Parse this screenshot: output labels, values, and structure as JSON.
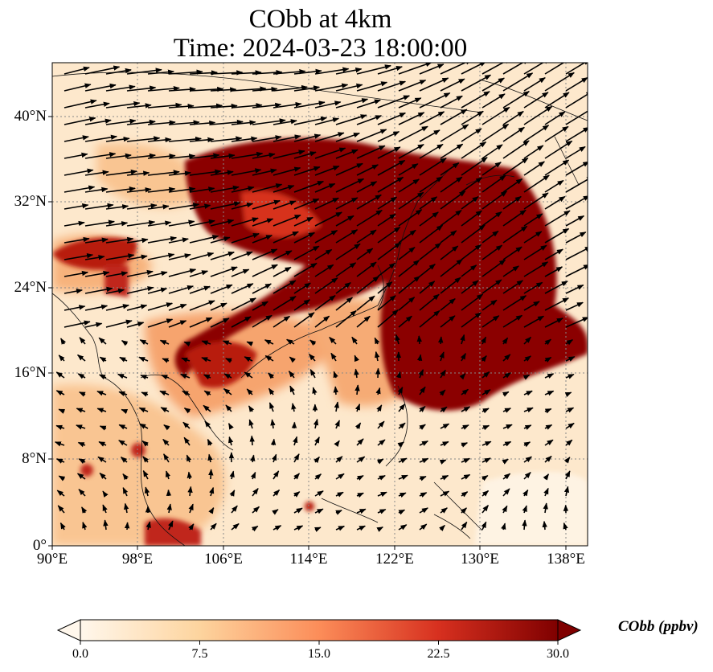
{
  "title": {
    "line1": "CObb at 4km",
    "line2": "Time: 2024-03-23 18:00:00"
  },
  "map": {
    "projection": "PlateCarree",
    "lon_range": [
      90,
      140
    ],
    "lat_range": [
      0,
      45
    ],
    "gridlines": "dotted",
    "coastlines": true,
    "field_colormap": "OrRd",
    "vector_field": "wind"
  },
  "axes": {
    "lat_ticks": [
      "0°",
      "8°N",
      "16°N",
      "24°N",
      "32°N",
      "40°N"
    ],
    "lat_values": [
      0,
      8,
      16,
      24,
      32,
      40
    ],
    "lon_ticks": [
      "90°E",
      "98°E",
      "106°E",
      "114°E",
      "122°E",
      "130°E",
      "138°E"
    ],
    "lon_values": [
      90,
      98,
      106,
      114,
      122,
      130,
      138
    ]
  },
  "colorbar": {
    "label": "CObb (ppbv)",
    "ticks": [
      "0.0",
      "7.5",
      "15.0",
      "22.5",
      "30.0"
    ],
    "min": 0,
    "max": 30,
    "extend": "both",
    "colors": [
      "#fff7ec",
      "#fdd49e",
      "#fc8d59",
      "#d7301f",
      "#7f0000"
    ]
  }
}
